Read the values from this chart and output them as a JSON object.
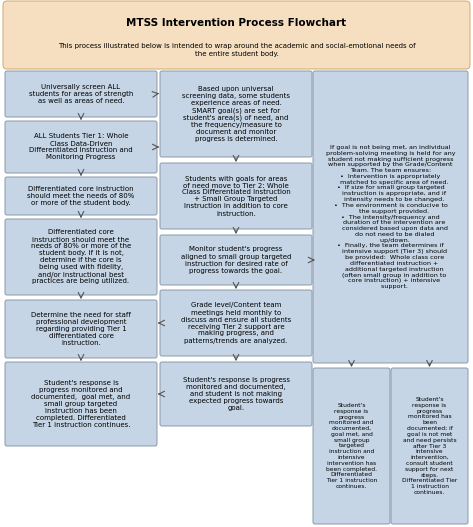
{
  "title": "MTSS Intervention Process Flowchart",
  "subtitle": "This process illustrated below is intended to wrap around the academic and social-emotional needs of\nthe entire student body.",
  "title_bg": "#f5dfc0",
  "title_border": "#d4a96a",
  "box_bg": "#c5d5e5",
  "box_border": "#8899aa",
  "bg_color": "#ffffff",
  "figsize": [
    4.73,
    5.27
  ],
  "dpi": 100,
  "col1_boxes": [
    "Universally screen ALL\nstudents for areas of strength\nas well as areas of need.",
    "ALL Students Tier 1: Whole\nClass Data-Driven\nDifferentiated Instruction and\nMonitoring Progress",
    "Differentiated core instruction\nshould meet the needs of 80%\nor more of the student body.",
    "Differentiated core\ninstruction should meet the\nneeds of 80% or more of the\nstudent body. If it is not,\ndetermine if the core is\nbeing used with fidelity,\nand/or instructional best\npractices are being utilized.",
    "Determine the need for staff\nprofessional development\nregarding providing Tier 1\ndifferentiated core\ninstruction.",
    "Student's response is\nprogress monitored and\ndocumented,  goal met, and\nsmall group targeted\ninstruction has been\ncompleted. Differentiated\nTier 1 instruction continues."
  ],
  "col2_boxes": [
    "Based upon universal\nscreening data, some students\nexperience areas of need.\nSMART goal(s) are set for\nstudent's area(s) of need, and\nthe frequency/measure to\ndocument and monitor\nprogress is determined.",
    "Students with goals for areas\nof need move to Tier 2: Whole\nClass Differentiated Instruction\n+ Small Group Targeted\nInstruction in addition to core\ninstruction.",
    "Monitor student's progress\naligned to small group targeted\ninstruction for desired rate of\nprogress towards the goal.",
    "Grade level/Content team\nmeetings held monthly to\ndiscuss and ensure all students\nreceiving Tier 2 support are\nmaking progress, and\npatterns/trends are analyzed.",
    "Student's response is progress\nmonitored and documented,\nand student is not making\nexpected progress towards\ngoal."
  ],
  "col3_big_box": "If goal is not being met, an individual\nproblem-solving meeting is held for any\nstudent not making sufficient progress\nwhen supported by the Grade/Content\nTeam. The team ensures:\n•  Intervention is appropriately\n    matched to specific area of need.\n•  If size for small group targeted\n    instruction is appropriate, and if\n    intensity needs to be changed.\n•  The environment is conducive to\n    the support provided.\n•  The intensity/frequency and\n    duration of the intervention are\n    considered based upon data and\n    do not need to be dialed\n    up/down.\n•  Finally, the team determines if\n    intensive support (Tier 3) should\n    be provided:  Whole class core\n    differentiated instruction +\n    additional targeted instruction\n    (often small group in addition to\n    core instruction) + intensive\n    support.",
  "col3_bottom_left": "Student's\nresponse is\nprogress\nmonitored and\ndocumented,\ngoal met, and\nsmall group\ntargeted\ninstruction and\nintensive\nintervention has\nbeen completed.\nDifferentiated\nTier 1 instruction\ncontinues.",
  "col3_bottom_right": "Student's\nresponse is\nprogress\nmonitored has\nbeen\ndocumented; if\ngoal is not met\nand need persists\nafter Tier 3\nintensive\nintervention,\nconsult student\nsupport for next\nsteps.\nDifferentiated Tier\n1 instruction\ncontinues."
}
